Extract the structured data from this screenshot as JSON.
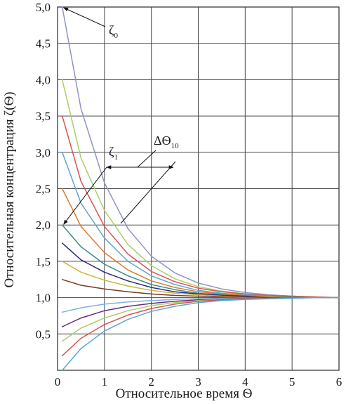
{
  "chart_data": {
    "type": "line",
    "title": "",
    "xlabel": "Относительное время Ѳ",
    "ylabel": "Относительная концентрация ζ(Ѳ)",
    "xlim": [
      0,
      6
    ],
    "ylim": [
      0,
      5
    ],
    "grid": true,
    "x_ticks": [
      "0",
      "1",
      "2",
      "3",
      "4",
      "5",
      "6"
    ],
    "y_ticks": [
      "0,5",
      "1,0",
      "1,5",
      "2,0",
      "2,5",
      "3,0",
      "3,5",
      "4,0",
      "4,5",
      "5,0"
    ],
    "x": [
      0.1,
      0.5,
      1,
      1.5,
      2,
      2.5,
      3,
      3.5,
      4,
      4.5,
      5,
      5.5,
      6
    ],
    "series": [
      {
        "color": "#8f93c4",
        "values": [
          5.0,
          3.6,
          2.58,
          1.95,
          1.57,
          1.34,
          1.2,
          1.12,
          1.07,
          1.04,
          1.02,
          1.01,
          1.0
        ]
      },
      {
        "color": "#a8cf6a",
        "values": [
          4.0,
          2.92,
          2.2,
          1.73,
          1.44,
          1.26,
          1.15,
          1.09,
          1.05,
          1.03,
          1.02,
          1.01,
          1.0
        ]
      },
      {
        "color": "#d9534f",
        "values": [
          3.5,
          2.6,
          1.98,
          1.6,
          1.36,
          1.22,
          1.13,
          1.08,
          1.05,
          1.03,
          1.02,
          1.01,
          1.0
        ]
      },
      {
        "color": "#5aa7cf",
        "values": [
          3.0,
          2.3,
          1.82,
          1.5,
          1.3,
          1.18,
          1.1,
          1.06,
          1.04,
          1.02,
          1.01,
          1.0,
          1.0
        ]
      },
      {
        "color": "#e07b2a",
        "values": [
          2.5,
          1.98,
          1.62,
          1.38,
          1.23,
          1.14,
          1.08,
          1.05,
          1.03,
          1.02,
          1.01,
          1.0,
          1.0
        ]
      },
      {
        "color": "#3a8b8b",
        "values": [
          2.0,
          1.7,
          1.46,
          1.3,
          1.18,
          1.11,
          1.06,
          1.04,
          1.02,
          1.01,
          1.01,
          1.0,
          1.0
        ]
      },
      {
        "color": "#2b2b7a",
        "values": [
          1.75,
          1.52,
          1.35,
          1.23,
          1.14,
          1.08,
          1.05,
          1.03,
          1.02,
          1.01,
          1.0,
          1.0,
          1.0
        ]
      },
      {
        "color": "#c9b43a",
        "values": [
          1.5,
          1.35,
          1.24,
          1.16,
          1.1,
          1.06,
          1.04,
          1.02,
          1.01,
          1.01,
          1.0,
          1.0,
          1.0
        ]
      },
      {
        "color": "#7a3c2a",
        "values": [
          1.25,
          1.17,
          1.12,
          1.08,
          1.05,
          1.03,
          1.02,
          1.01,
          1.01,
          1.0,
          1.0,
          1.0,
          1.0
        ]
      },
      {
        "color": "#7fb0e0",
        "values": [
          0.8,
          0.86,
          0.91,
          0.94,
          0.96,
          0.975,
          0.985,
          0.99,
          0.995,
          1.0,
          1.0,
          1.0,
          1.0
        ]
      },
      {
        "color": "#6a2b7a",
        "values": [
          0.6,
          0.72,
          0.82,
          0.88,
          0.92,
          0.95,
          0.97,
          0.98,
          0.99,
          1.0,
          1.0,
          1.0,
          1.0
        ]
      },
      {
        "color": "#a8cf6a",
        "values": [
          0.4,
          0.58,
          0.72,
          0.82,
          0.89,
          0.93,
          0.96,
          0.975,
          0.985,
          0.99,
          1.0,
          1.0,
          1.0
        ]
      },
      {
        "color": "#d9534f",
        "values": [
          0.2,
          0.44,
          0.63,
          0.76,
          0.85,
          0.91,
          0.95,
          0.97,
          0.98,
          0.99,
          1.0,
          1.0,
          1.0
        ]
      },
      {
        "color": "#5aa7cf",
        "values": [
          0.0,
          0.3,
          0.54,
          0.7,
          0.81,
          0.88,
          0.93,
          0.96,
          0.975,
          0.985,
          0.99,
          1.0,
          1.0
        ]
      }
    ],
    "annotations": [
      {
        "symbol": "ζ",
        "sub": "0"
      },
      {
        "symbol": "ζ",
        "sub": "1"
      },
      {
        "symbol": "ΔѲ",
        "sub": "10"
      }
    ]
  }
}
